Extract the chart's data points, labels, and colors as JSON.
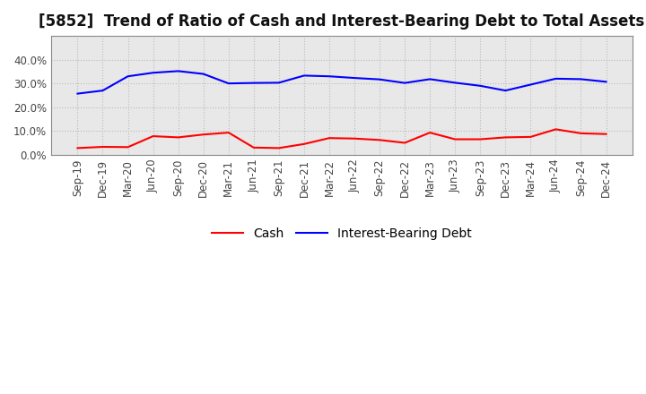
{
  "title": "[5852]  Trend of Ratio of Cash and Interest-Bearing Debt to Total Assets",
  "x_labels": [
    "Sep-19",
    "Dec-19",
    "Mar-20",
    "Jun-20",
    "Sep-20",
    "Dec-20",
    "Mar-21",
    "Jun-21",
    "Sep-21",
    "Dec-21",
    "Mar-22",
    "Jun-22",
    "Sep-22",
    "Dec-22",
    "Mar-23",
    "Jun-23",
    "Sep-23",
    "Dec-23",
    "Mar-24",
    "Jun-24",
    "Sep-24",
    "Dec-24"
  ],
  "cash": [
    0.028,
    0.033,
    0.032,
    0.078,
    0.073,
    0.085,
    0.093,
    0.03,
    0.028,
    0.045,
    0.07,
    0.068,
    0.062,
    0.05,
    0.093,
    0.065,
    0.065,
    0.073,
    0.075,
    0.107,
    0.09,
    0.087
  ],
  "interest_bearing_debt": [
    0.257,
    0.27,
    0.33,
    0.345,
    0.352,
    0.34,
    0.3,
    0.302,
    0.303,
    0.333,
    0.33,
    0.323,
    0.317,
    0.302,
    0.318,
    0.303,
    0.29,
    0.27,
    0.295,
    0.32,
    0.318,
    0.307
  ],
  "cash_color": "#ff0000",
  "debt_color": "#0000ff",
  "ylim": [
    0.0,
    0.5
  ],
  "yticks": [
    0.0,
    0.1,
    0.2,
    0.3,
    0.4
  ],
  "plot_bg_color": "#e8e8e8",
  "fig_bg_color": "#ffffff",
  "grid_color": "#bbbbbb",
  "title_fontsize": 12,
  "tick_fontsize": 8.5,
  "legend_cash": "Cash",
  "legend_debt": "Interest-Bearing Debt"
}
